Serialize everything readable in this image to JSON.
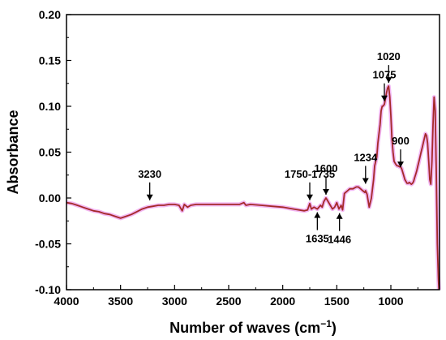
{
  "chart_data": {
    "type": "line",
    "xlabel_main": "Number of waves (cm",
    "xlabel_sup": "−1",
    "xlabel_close": ")",
    "ylabel": "Absorbance",
    "xlim": [
      4000,
      550
    ],
    "ylim": [
      -0.1,
      0.2
    ],
    "x_reversed": true,
    "xticks": [
      4000,
      3500,
      3000,
      2500,
      2000,
      1500,
      1000
    ],
    "xtick_labels": [
      "4000",
      "3500",
      "3000",
      "2500",
      "2000",
      "1500",
      "1000"
    ],
    "yticks": [
      -0.1,
      -0.05,
      0.0,
      0.05,
      0.1,
      0.15,
      0.2
    ],
    "ytick_labels": [
      "-0.10",
      "-0.05",
      "0.00",
      "0.05",
      "0.10",
      "0.15",
      "0.20"
    ],
    "grid": false,
    "series": [
      {
        "color": "#a52a2a",
        "shadow_color": "#f2b6f2",
        "x": [
          4000,
          3950,
          3900,
          3850,
          3800,
          3750,
          3700,
          3650,
          3600,
          3550,
          3500,
          3450,
          3400,
          3350,
          3300,
          3250,
          3200,
          3150,
          3100,
          3050,
          3000,
          2960,
          2930,
          2910,
          2880,
          2850,
          2800,
          2750,
          2700,
          2600,
          2500,
          2400,
          2360,
          2340,
          2300,
          2200,
          2100,
          2000,
          1900,
          1800,
          1770,
          1750,
          1735,
          1710,
          1680,
          1650,
          1635,
          1620,
          1600,
          1580,
          1560,
          1540,
          1520,
          1500,
          1480,
          1460,
          1446,
          1430,
          1400,
          1380,
          1350,
          1320,
          1300,
          1280,
          1260,
          1240,
          1234,
          1220,
          1200,
          1180,
          1160,
          1150,
          1130,
          1120,
          1100,
          1090,
          1080,
          1075,
          1060,
          1050,
          1040,
          1030,
          1020,
          1010,
          1000,
          990,
          980,
          970,
          960,
          950,
          940,
          930,
          920,
          910,
          900,
          890,
          880,
          870,
          860,
          850,
          840,
          830,
          820,
          810,
          800,
          790,
          780,
          770,
          760,
          750,
          740,
          730,
          720,
          710,
          700,
          690,
          680,
          670,
          660,
          650,
          640,
          630,
          620,
          610,
          600,
          590,
          580,
          570,
          560,
          555
        ],
        "y": [
          -0.005,
          -0.006,
          -0.008,
          -0.01,
          -0.012,
          -0.014,
          -0.015,
          -0.017,
          -0.018,
          -0.02,
          -0.022,
          -0.02,
          -0.018,
          -0.015,
          -0.012,
          -0.01,
          -0.009,
          -0.008,
          -0.008,
          -0.007,
          -0.007,
          -0.008,
          -0.014,
          -0.007,
          -0.01,
          -0.008,
          -0.007,
          -0.007,
          -0.007,
          -0.007,
          -0.007,
          -0.007,
          -0.005,
          -0.008,
          -0.007,
          -0.008,
          -0.009,
          -0.01,
          -0.012,
          -0.014,
          -0.013,
          -0.006,
          -0.012,
          -0.01,
          -0.012,
          -0.008,
          -0.01,
          -0.004,
          0.0,
          -0.004,
          -0.008,
          -0.012,
          -0.01,
          -0.005,
          -0.012,
          -0.008,
          -0.013,
          0.005,
          0.008,
          0.01,
          0.01,
          0.012,
          0.012,
          0.01,
          0.008,
          0.006,
          0.008,
          0.004,
          -0.01,
          0.0,
          0.02,
          0.035,
          0.045,
          0.06,
          0.08,
          0.095,
          0.1,
          0.1,
          0.102,
          0.108,
          0.115,
          0.12,
          0.122,
          0.11,
          0.09,
          0.065,
          0.05,
          0.04,
          0.038,
          0.036,
          0.035,
          0.035,
          0.034,
          0.034,
          0.032,
          0.028,
          0.024,
          0.02,
          0.018,
          0.016,
          0.016,
          0.017,
          0.016,
          0.015,
          0.016,
          0.018,
          0.022,
          0.026,
          0.03,
          0.035,
          0.04,
          0.045,
          0.05,
          0.055,
          0.06,
          0.065,
          0.07,
          0.068,
          0.06,
          0.04,
          0.02,
          0.015,
          0.04,
          0.08,
          0.11,
          0.095,
          0.03,
          -0.05,
          -0.09,
          -0.1
        ]
      }
    ],
    "annotations": [
      {
        "label": "3230",
        "x": 3230,
        "y": -0.006,
        "dir": "above"
      },
      {
        "label": "1750-1735",
        "x": 1750,
        "y": -0.006,
        "dir": "above"
      },
      {
        "label": "1600",
        "x": 1600,
        "y": 0.0,
        "dir": "above"
      },
      {
        "label": "1234",
        "x": 1234,
        "y": 0.012,
        "dir": "above"
      },
      {
        "label": "1075",
        "x": 1060,
        "y": 0.102,
        "dir": "above"
      },
      {
        "label": "1020",
        "x": 1020,
        "y": 0.122,
        "dir": "above"
      },
      {
        "label": "900",
        "x": 910,
        "y": 0.03,
        "dir": "above"
      },
      {
        "label": "1635",
        "x": 1680,
        "y": -0.012,
        "dir": "below"
      },
      {
        "label": "1446",
        "x": 1475,
        "y": -0.013,
        "dir": "below"
      }
    ]
  }
}
